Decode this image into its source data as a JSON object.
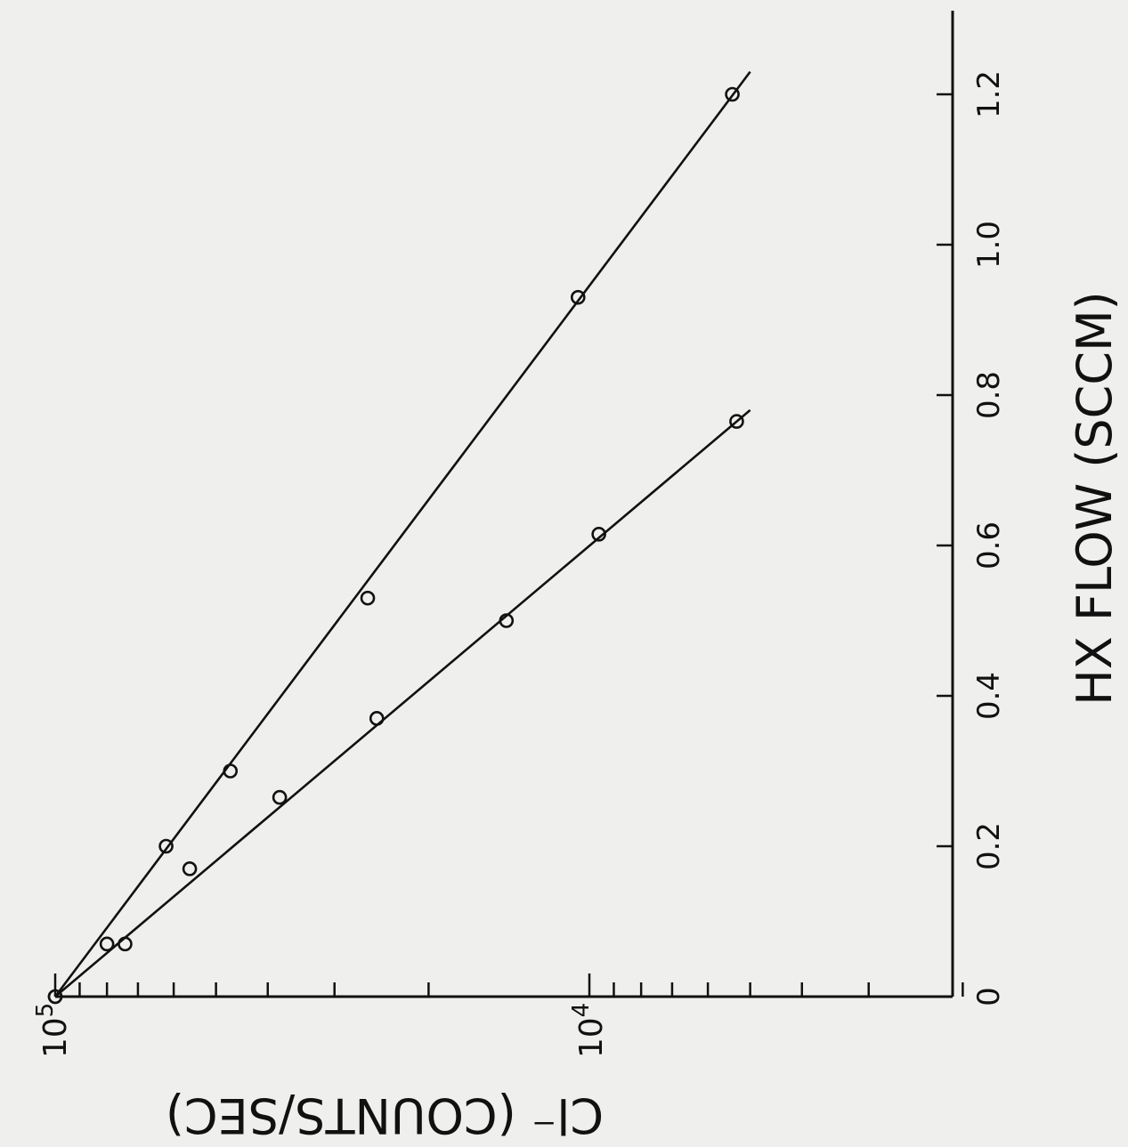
{
  "chart_data": {
    "type": "scatter",
    "orientation": "rotated 90 degrees counter-clockwise",
    "xlabel": "HX FLOW (SCCM)",
    "ylabel": "Cl⁻ (COUNTS/SEC)",
    "x_ticks": [
      "0",
      "0.2",
      "0.4",
      "0.6",
      "0.8",
      "1.0",
      "1.2"
    ],
    "xlim": [
      0,
      1.27
    ],
    "y_scale": "log",
    "y_tick_labels": [
      {
        "base": "10",
        "exp": "5",
        "value": 100000
      },
      {
        "base": "10",
        "exp": "4",
        "value": 10000
      }
    ],
    "ylim": [
      100000,
      2000
    ],
    "grid": false,
    "series": [
      {
        "x": [
          0,
          0.07,
          0.2,
          0.3,
          0.53,
          0.93,
          1.2
        ],
        "y": [
          100000,
          80000,
          62000,
          47000,
          26000,
          10500,
          5400
        ],
        "fit": {
          "x": [
            0,
            1.23
          ],
          "y": [
            100000,
            5000
          ]
        }
      },
      {
        "x": [
          0,
          0.07,
          0.17,
          0.265,
          0.37,
          0.5,
          0.615,
          0.765
        ],
        "y": [
          100000,
          74000,
          56000,
          38000,
          25000,
          14300,
          9600,
          5300
        ],
        "fit": {
          "x": [
            0,
            0.78
          ],
          "y": [
            100000,
            5000
          ]
        }
      }
    ]
  }
}
